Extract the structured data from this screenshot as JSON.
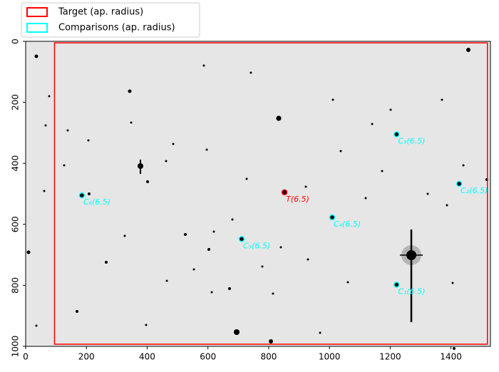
{
  "chart_data": {
    "type": "image",
    "xlim": [
      0,
      1530
    ],
    "ylim": [
      1000,
      0
    ],
    "xticks": [
      0,
      200,
      400,
      600,
      800,
      1000,
      1200,
      1400
    ],
    "yticks": [
      0,
      200,
      400,
      600,
      800,
      1000
    ],
    "legend": "upper left",
    "target_region": {
      "x": [
        95,
        1520
      ],
      "y": [
        5,
        993
      ]
    },
    "series": [
      {
        "name": "Target (ap. radius)",
        "color": "#ff0000",
        "x": [
          852
        ],
        "y": [
          495
        ],
        "labels": [
          "T(6.5)"
        ]
      },
      {
        "name": "Comparisons (ap. radius)",
        "color": "#00ffff",
        "x": [
          1221,
          1427,
          1221,
          1009,
          711,
          185
        ],
        "y": [
          798,
          467,
          305,
          577,
          648,
          505
        ],
        "labels": [
          "C₁(6.5)",
          "C₂(6.5)",
          "C₃(6.5)",
          "C₄(6.5)",
          "C₅(6.5)",
          "C₆(6.5)"
        ]
      }
    ]
  }
}
